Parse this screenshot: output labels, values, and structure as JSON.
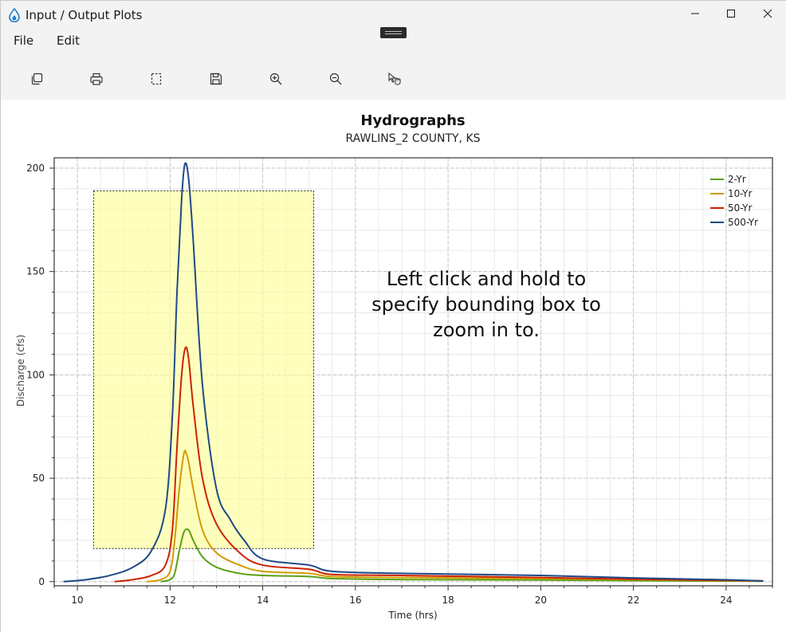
{
  "window": {
    "title": "Input / Output Plots",
    "icon": "water-drop-icon"
  },
  "menu": {
    "items": [
      "File",
      "Edit"
    ]
  },
  "toolbar": {
    "buttons": [
      "copy-icon",
      "print-icon",
      "select-area-icon",
      "save-icon",
      "zoom-in-icon",
      "zoom-out-icon",
      "pointer-hand-icon"
    ]
  },
  "tooltip": {
    "text_lines": [
      "Left click and hold to",
      "specify bounding box to",
      "zoom in to."
    ]
  },
  "chart_data": {
    "type": "line",
    "title": "Hydrographs",
    "subtitle": "RAWLINS_2 COUNTY, KS",
    "xlabel": "Time (hrs)",
    "ylabel": "Discharge (cfs)",
    "xlim": [
      9.5,
      25.0
    ],
    "ylim": [
      -2,
      205
    ],
    "xticks": [
      10,
      12,
      14,
      16,
      18,
      20,
      22,
      24
    ],
    "yticks": [
      0,
      50,
      100,
      150,
      200
    ],
    "grid": true,
    "legend_position": "top-right",
    "colors": {
      "2-Yr": "#5aa012",
      "10-Yr": "#d29b00",
      "50-Yr": "#cc2200",
      "500-Yr": "#1f4a86"
    },
    "series": [
      {
        "name": "2-Yr",
        "x": [
          11.8,
          12.0,
          12.1,
          12.2,
          12.3,
          12.4,
          12.5,
          12.7,
          13.0,
          13.5,
          14.0,
          15.0,
          15.5,
          17,
          20,
          22,
          24,
          24.8
        ],
        "y": [
          0,
          1,
          4,
          15,
          24,
          25,
          20,
          12,
          7,
          4,
          3,
          2.5,
          1.5,
          1,
          0.8,
          0.5,
          0.3,
          0.2
        ]
      },
      {
        "name": "10-Yr",
        "x": [
          11.5,
          11.8,
          12.0,
          12.1,
          12.2,
          12.3,
          12.35,
          12.4,
          12.5,
          12.7,
          13.0,
          13.5,
          14.0,
          15.0,
          15.5,
          17,
          20,
          22,
          24,
          24.8
        ],
        "y": [
          0,
          1,
          5,
          20,
          45,
          62,
          62,
          58,
          45,
          25,
          14,
          8,
          5,
          4,
          2.5,
          2,
          1.5,
          1,
          0.5,
          0.3
        ]
      },
      {
        "name": "50-Yr",
        "x": [
          10.8,
          11.2,
          11.6,
          11.9,
          12.05,
          12.15,
          12.25,
          12.33,
          12.4,
          12.5,
          12.7,
          13.0,
          13.5,
          14.0,
          15.0,
          15.5,
          17,
          20,
          22,
          24,
          24.8
        ],
        "y": [
          0,
          1,
          3,
          8,
          25,
          65,
          100,
          113,
          108,
          85,
          50,
          28,
          14,
          8,
          6,
          3.5,
          3,
          2,
          1.2,
          0.6,
          0.4
        ]
      },
      {
        "name": "500-Yr",
        "x": [
          9.7,
          10.2,
          10.7,
          11.2,
          11.6,
          11.9,
          12.05,
          12.15,
          12.25,
          12.32,
          12.4,
          12.5,
          12.7,
          13.0,
          13.3,
          13.6,
          14.0,
          15.0,
          15.5,
          17,
          20,
          22,
          24,
          24.8
        ],
        "y": [
          0,
          1,
          3,
          7,
          15,
          35,
          80,
          140,
          185,
          202,
          195,
          165,
          95,
          45,
          30,
          20,
          11,
          8,
          5,
          4,
          3,
          1.8,
          0.9,
          0.3
        ]
      }
    ],
    "selection_box": {
      "x": [
        10.35,
        15.1
      ],
      "y": [
        16,
        189
      ]
    }
  }
}
